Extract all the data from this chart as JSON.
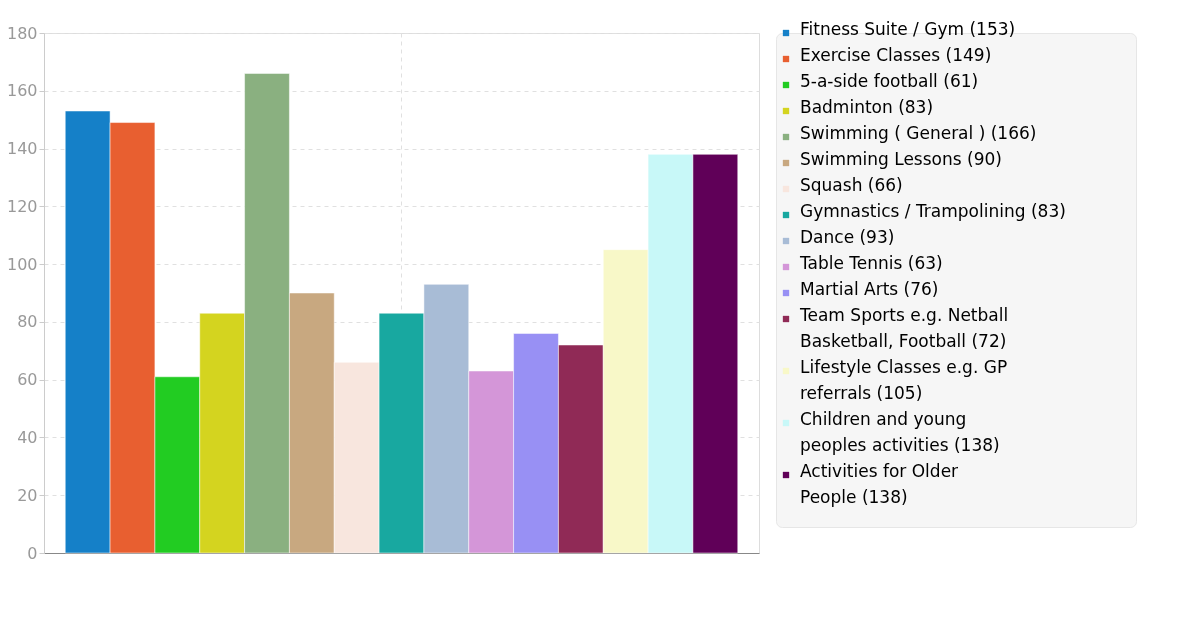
{
  "chart_data": {
    "type": "bar",
    "categories": [
      null
    ],
    "series": [
      {
        "name": "Fitness Suite / Gym (153)",
        "color": "#1580c8",
        "values": [
          153
        ]
      },
      {
        "name": "Exercise Classes (149)",
        "color": "#e85f30",
        "values": [
          149
        ]
      },
      {
        "name": "5-a-side football (61)",
        "color": "#22cc22",
        "values": [
          61
        ]
      },
      {
        "name": "Badminton (83)",
        "color": "#d4d41f",
        "values": [
          83
        ]
      },
      {
        "name": "Swimming ( General ) (166)",
        "color": "#8ab080",
        "values": [
          166
        ]
      },
      {
        "name": "Swimming Lessons (90)",
        "color": "#c8a880",
        "values": [
          90
        ]
      },
      {
        "name": "Squash (66)",
        "color": "#f8e6de",
        "values": [
          66
        ]
      },
      {
        "name": "Gymnastics / Trampolining (83)",
        "color": "#18a8a0",
        "values": [
          83
        ]
      },
      {
        "name": "Dance (93)",
        "color": "#a8bcd6",
        "values": [
          93
        ]
      },
      {
        "name": "Table Tennis (63)",
        "color": "#d496d8",
        "values": [
          63
        ]
      },
      {
        "name": "Martial Arts (76)",
        "color": "#9890f4",
        "values": [
          76
        ]
      },
      {
        "name": "Team Sports e.g. Netball\nBasketball, Football (72)",
        "color": "#902a56",
        "values": [
          72
        ]
      },
      {
        "name": "Lifestyle Classes e.g. GP\nreferrals (105)",
        "color": "#f8f8c8",
        "values": [
          105
        ]
      },
      {
        "name": "Children and young\npeoples activities (138)",
        "color": "#c8f8f8",
        "values": [
          138
        ]
      },
      {
        "name": "Activities for Older\nPeople (138)",
        "color": "#600058",
        "values": [
          138
        ]
      }
    ],
    "ylim": [
      0,
      180
    ],
    "yticks": [
      0,
      20,
      40,
      60,
      80,
      100,
      120,
      140,
      160,
      180
    ],
    "grid": true,
    "legend": "right",
    "tick_labels": "y"
  }
}
